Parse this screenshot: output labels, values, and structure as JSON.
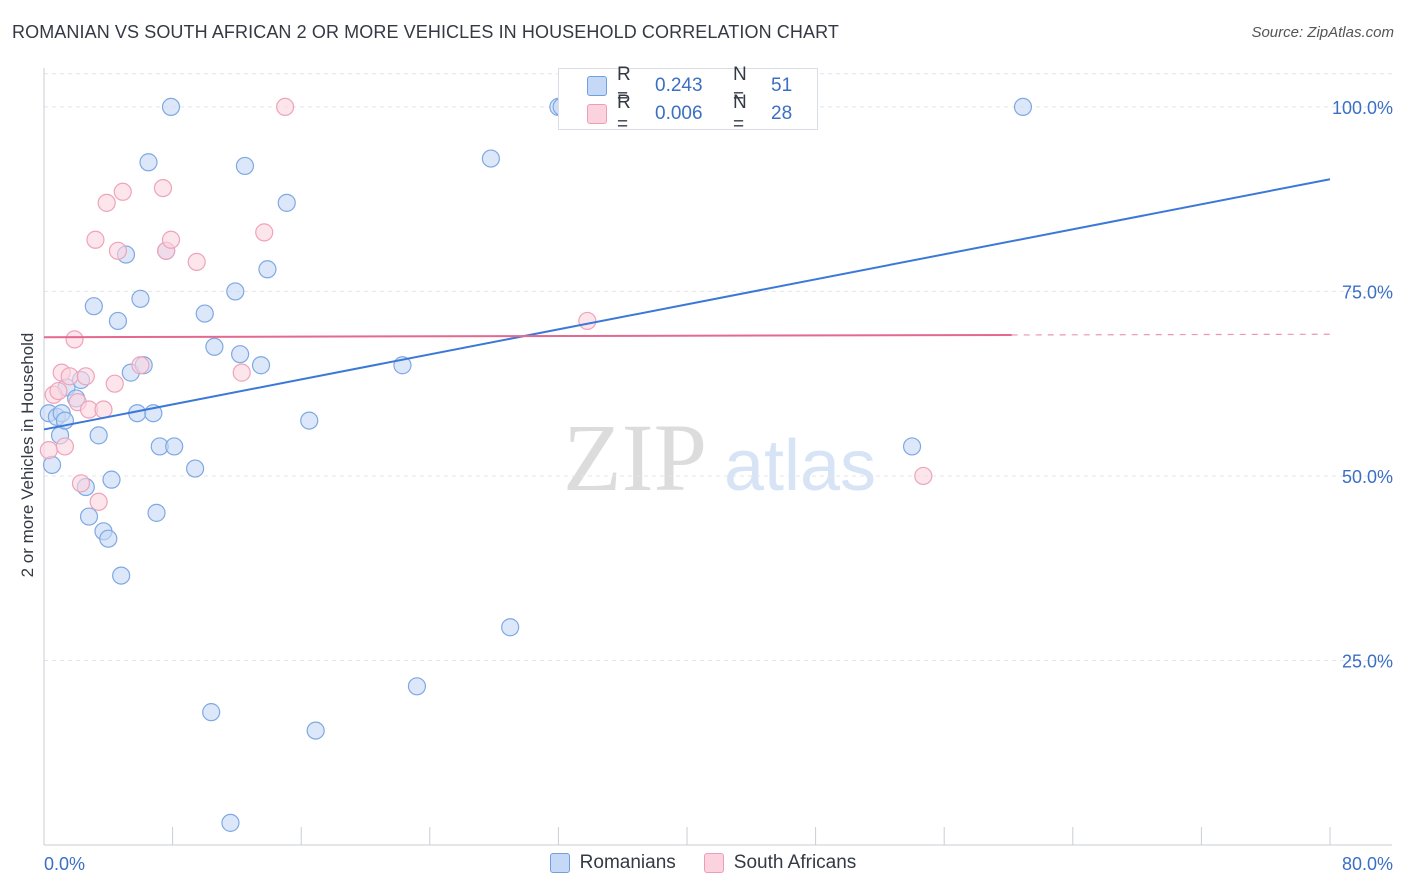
{
  "header": {
    "title": "ROMANIAN VS SOUTH AFRICAN 2 OR MORE VEHICLES IN HOUSEHOLD CORRELATION CHART",
    "source": "Source: ZipAtlas.com"
  },
  "watermark": {
    "zip": "ZIP",
    "atlas": "atlas"
  },
  "stats": [
    {
      "r_label": "R =",
      "r_value": "0.243",
      "n_label": "N =",
      "n_value": "51",
      "color": "#6f9fe0",
      "fill": "#c5d9f6"
    },
    {
      "r_label": "R =",
      "r_value": "0.006",
      "n_label": "N =",
      "n_value": "28",
      "color": "#ef9db4",
      "fill": "#fbd3df"
    }
  ],
  "legend": [
    {
      "label": "Romanians",
      "color": "#6f9fe0",
      "fill": "#c5d9f6"
    },
    {
      "label": "South Africans",
      "color": "#ef9db4",
      "fill": "#fbd3df"
    }
  ],
  "chart_data": {
    "type": "scatter",
    "title": "ROMANIAN VS SOUTH AFRICAN 2 OR MORE VEHICLES IN HOUSEHOLD CORRELATION CHART",
    "xlabel": "",
    "ylabel": "2 or more Vehicles in Household",
    "xlim": [
      0,
      80
    ],
    "ylim": [
      0,
      105
    ],
    "x_tick_labels": [
      "0.0%",
      "80.0%"
    ],
    "y_ticks": [
      25,
      50,
      75,
      100
    ],
    "y_tick_labels": [
      "25.0%",
      "50.0%",
      "75.0%",
      "100.0%"
    ],
    "grid": true,
    "series": [
      {
        "name": "Romanians",
        "color": "#3b78d8",
        "fill": "#c5d9f6",
        "stroke": "#7fa8e3",
        "trend": {
          "x0": 0,
          "y0": 56.3,
          "x1": 80,
          "y1": 90.2,
          "dash_from": null
        },
        "points": [
          [
            0.3,
            58.5
          ],
          [
            0.5,
            51.5
          ],
          [
            0.8,
            58.0
          ],
          [
            1.0,
            55.5
          ],
          [
            1.1,
            58.5
          ],
          [
            1.4,
            62.0
          ],
          [
            2.0,
            60.5
          ],
          [
            2.3,
            63.0
          ],
          [
            2.6,
            48.5
          ],
          [
            2.8,
            44.5
          ],
          [
            3.1,
            73.0
          ],
          [
            3.4,
            55.5
          ],
          [
            3.7,
            42.5
          ],
          [
            4.0,
            41.5
          ],
          [
            4.2,
            49.5
          ],
          [
            4.6,
            71.0
          ],
          [
            4.8,
            36.5
          ],
          [
            5.1,
            80.0
          ],
          [
            5.4,
            64.0
          ],
          [
            5.8,
            58.5
          ],
          [
            6.0,
            74.0
          ],
          [
            6.2,
            65.0
          ],
          [
            6.5,
            92.5
          ],
          [
            6.8,
            58.5
          ],
          [
            7.0,
            45.0
          ],
          [
            7.2,
            54.0
          ],
          [
            7.6,
            80.5
          ],
          [
            7.9,
            100.0
          ],
          [
            8.1,
            54.0
          ],
          [
            9.4,
            51.0
          ],
          [
            10.0,
            72.0
          ],
          [
            10.4,
            18.0
          ],
          [
            10.6,
            67.5
          ],
          [
            11.6,
            3.0
          ],
          [
            11.9,
            75.0
          ],
          [
            12.2,
            66.5
          ],
          [
            12.5,
            92.0
          ],
          [
            13.5,
            65.0
          ],
          [
            13.9,
            78.0
          ],
          [
            15.1,
            87.0
          ],
          [
            16.5,
            57.5
          ],
          [
            16.9,
            15.5
          ],
          [
            22.3,
            65.0
          ],
          [
            23.2,
            21.5
          ],
          [
            27.8,
            93.0
          ],
          [
            29.0,
            29.5
          ],
          [
            32.0,
            100.0
          ],
          [
            32.2,
            100.0
          ],
          [
            54.0,
            54.0
          ],
          [
            60.9,
            100.0
          ],
          [
            1.3,
            57.5
          ]
        ]
      },
      {
        "name": "South Africans",
        "color": "#e4698f",
        "fill": "#fbd3df",
        "stroke": "#efa3ba",
        "trend": {
          "x0": 0,
          "y0": 68.8,
          "x1": 80,
          "y1": 69.2,
          "dash_from": 60.2
        },
        "points": [
          [
            0.3,
            53.5
          ],
          [
            0.6,
            61.0
          ],
          [
            0.9,
            61.5
          ],
          [
            1.1,
            64.0
          ],
          [
            1.3,
            54.0
          ],
          [
            1.6,
            63.5
          ],
          [
            1.9,
            68.5
          ],
          [
            2.1,
            60.0
          ],
          [
            2.3,
            49.0
          ],
          [
            2.6,
            63.5
          ],
          [
            2.8,
            59.0
          ],
          [
            3.2,
            82.0
          ],
          [
            3.4,
            46.5
          ],
          [
            3.7,
            59.0
          ],
          [
            3.9,
            87.0
          ],
          [
            4.4,
            62.5
          ],
          [
            4.6,
            80.5
          ],
          [
            4.9,
            88.5
          ],
          [
            6.0,
            65.0
          ],
          [
            7.4,
            89.0
          ],
          [
            7.6,
            80.5
          ],
          [
            7.9,
            82.0
          ],
          [
            9.5,
            79.0
          ],
          [
            12.3,
            64.0
          ],
          [
            13.7,
            83.0
          ],
          [
            15.0,
            100.0
          ],
          [
            33.8,
            71.0
          ],
          [
            54.7,
            50.0
          ]
        ]
      }
    ]
  }
}
